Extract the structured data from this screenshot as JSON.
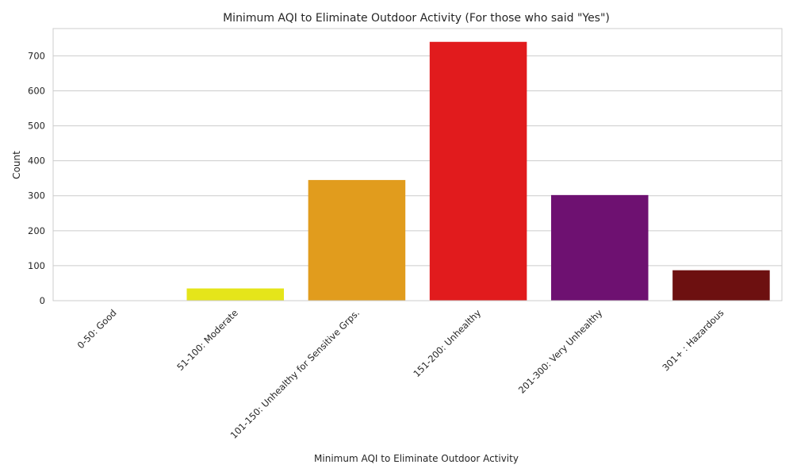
{
  "chart_data": {
    "type": "bar",
    "title": "Minimum AQI to Eliminate Outdoor Activity (For those who said \"Yes\")",
    "xlabel": "Minimum AQI to Eliminate Outdoor Activity",
    "ylabel": "Count",
    "categories": [
      "0-50: Good",
      "51-100: Moderate",
      "101-150: Unhealthy for Sensitive Grps.",
      "151-200: Unhealthy",
      "201-300: Very Unhealthy",
      "301+ : Hazardous"
    ],
    "values": [
      0,
      35,
      345,
      740,
      302,
      87
    ],
    "colors": [
      "#008000",
      "#e5e51a",
      "#e19c1d",
      "#e11b1d",
      "#6e1171",
      "#6d1010"
    ],
    "ylim": [
      0,
      778
    ],
    "yticks": [
      0,
      100,
      200,
      300,
      400,
      500,
      600,
      700
    ],
    "grid": true,
    "grid_axis": "y",
    "tick_rotation": 45
  }
}
